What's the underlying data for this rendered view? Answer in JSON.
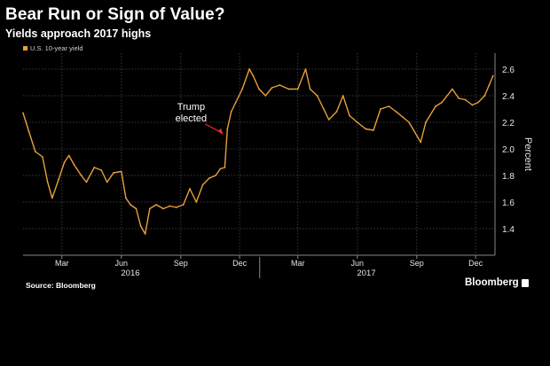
{
  "header": {
    "title": "Bear Run or Sign of Value?",
    "subtitle": "Yields approach 2017 highs"
  },
  "footer": {
    "source": "Source: Bloomberg",
    "brand": "Bloomberg"
  },
  "colors": {
    "background": "#000000",
    "series": "#e8a03a",
    "grid": "#3a3a3a",
    "text": "#ffffff",
    "annotation_arrow": "#ff2a2a"
  },
  "chart_data": {
    "type": "line",
    "title": "Bear Run or Sign of Value?",
    "subtitle": "Yields approach 2017 highs",
    "ylabel": "Percent",
    "xlabel": "",
    "ylim": [
      1.2,
      2.72
    ],
    "y_axis_side": "right",
    "y_ticks": [
      1.4,
      1.6,
      1.8,
      2.0,
      2.2,
      2.4,
      2.6
    ],
    "y_tick_labels": [
      "1.4",
      "1.6",
      "1.8",
      "2.0",
      "2.2",
      "2.4",
      "2.6"
    ],
    "x_range": [
      "2016-01-01",
      "2017-12-31"
    ],
    "x_ticks": [
      {
        "date": "2016-03-01",
        "label": "Mar"
      },
      {
        "date": "2016-06-01",
        "label": "Jun"
      },
      {
        "date": "2016-09-01",
        "label": "Sep"
      },
      {
        "date": "2016-12-01",
        "label": "Dec"
      },
      {
        "date": "2017-03-01",
        "label": "Mar"
      },
      {
        "date": "2017-06-01",
        "label": "Jun"
      },
      {
        "date": "2017-09-01",
        "label": "Sep"
      },
      {
        "date": "2017-12-01",
        "label": "Dec"
      }
    ],
    "year_labels": [
      {
        "date": "2016-06-15",
        "label": "2016"
      },
      {
        "date": "2017-06-15",
        "label": "2017"
      }
    ],
    "grid": true,
    "legend": {
      "position": "top-left",
      "entries": [
        "U.S. 10-year yield"
      ]
    },
    "annotations": [
      {
        "text_lines": [
          "Trump",
          "elected"
        ],
        "date": "2016-11-08",
        "value": 1.85
      }
    ],
    "series": [
      {
        "name": "U.S. 10-year yield",
        "x": [
          "2016-01-01",
          "2016-01-10",
          "2016-01-20",
          "2016-01-31",
          "2016-02-08",
          "2016-02-15",
          "2016-02-25",
          "2016-03-05",
          "2016-03-12",
          "2016-03-20",
          "2016-03-31",
          "2016-04-08",
          "2016-04-20",
          "2016-05-01",
          "2016-05-10",
          "2016-05-20",
          "2016-06-01",
          "2016-06-08",
          "2016-06-15",
          "2016-06-24",
          "2016-07-01",
          "2016-07-08",
          "2016-07-15",
          "2016-07-25",
          "2016-08-05",
          "2016-08-15",
          "2016-08-25",
          "2016-09-05",
          "2016-09-15",
          "2016-09-25",
          "2016-10-05",
          "2016-10-15",
          "2016-10-25",
          "2016-11-01",
          "2016-11-08",
          "2016-11-12",
          "2016-11-18",
          "2016-11-25",
          "2016-12-05",
          "2016-12-16",
          "2016-12-22",
          "2016-12-31",
          "2017-01-10",
          "2017-01-20",
          "2017-02-01",
          "2017-02-15",
          "2017-03-01",
          "2017-03-13",
          "2017-03-20",
          "2017-03-31",
          "2017-04-10",
          "2017-04-18",
          "2017-04-30",
          "2017-05-10",
          "2017-05-20",
          "2017-06-01",
          "2017-06-14",
          "2017-06-26",
          "2017-07-07",
          "2017-07-20",
          "2017-07-31",
          "2017-08-10",
          "2017-08-20",
          "2017-09-07",
          "2017-09-15",
          "2017-09-30",
          "2017-10-10",
          "2017-10-26",
          "2017-11-05",
          "2017-11-15",
          "2017-11-26",
          "2017-12-05",
          "2017-12-15",
          "2017-12-22",
          "2017-12-28"
        ],
        "values": [
          2.27,
          2.13,
          1.98,
          1.94,
          1.75,
          1.63,
          1.77,
          1.9,
          1.95,
          1.88,
          1.8,
          1.75,
          1.86,
          1.84,
          1.75,
          1.82,
          1.83,
          1.63,
          1.58,
          1.55,
          1.42,
          1.36,
          1.55,
          1.58,
          1.55,
          1.57,
          1.56,
          1.58,
          1.7,
          1.6,
          1.73,
          1.78,
          1.8,
          1.85,
          1.86,
          2.15,
          2.28,
          2.35,
          2.45,
          2.6,
          2.55,
          2.45,
          2.4,
          2.46,
          2.48,
          2.45,
          2.45,
          2.6,
          2.45,
          2.4,
          2.3,
          2.22,
          2.28,
          2.4,
          2.25,
          2.2,
          2.15,
          2.14,
          2.3,
          2.32,
          2.28,
          2.24,
          2.2,
          2.05,
          2.2,
          2.32,
          2.35,
          2.45,
          2.38,
          2.37,
          2.33,
          2.35,
          2.4,
          2.48,
          2.55
        ]
      }
    ]
  }
}
